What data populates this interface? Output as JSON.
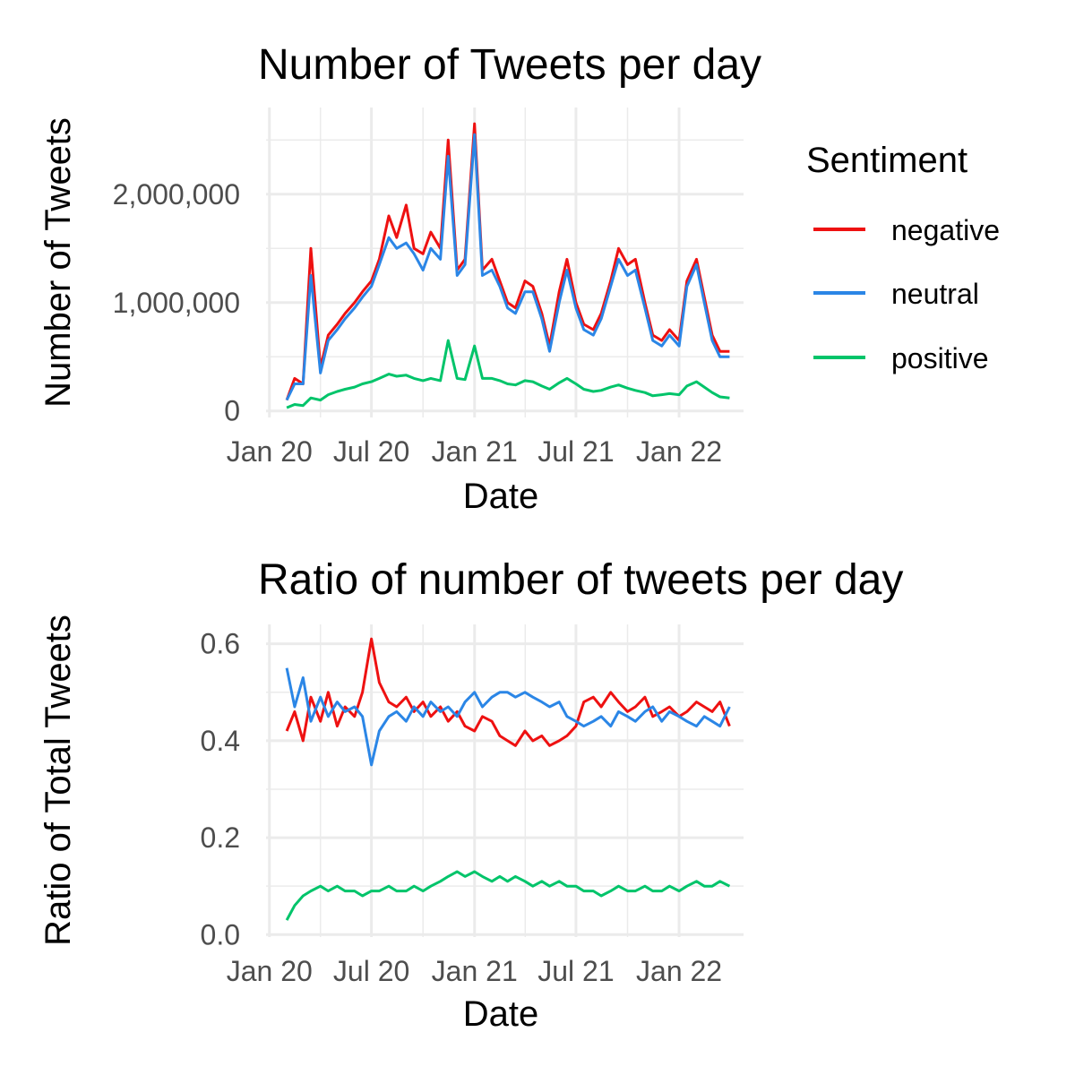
{
  "legend": {
    "title": "Sentiment",
    "items": [
      {
        "label": "negative",
        "color": "#ee1111"
      },
      {
        "label": "neutral",
        "color": "#2b86e6"
      },
      {
        "label": "positive",
        "color": "#00c46a"
      }
    ]
  },
  "chart_data": [
    {
      "type": "line",
      "title": "Number of Tweets per day",
      "xlabel": "Date",
      "ylabel": "Number of Tweets",
      "x_tick_labels": [
        "Jan 20",
        "Jul 20",
        "Jan 21",
        "Jul 21",
        "Jan 22"
      ],
      "y_ticks": [
        0,
        1000000,
        2000000
      ],
      "y_tick_labels": [
        "0",
        "1,000,000",
        "2,000,000"
      ],
      "ylim": [
        -60000,
        2800000
      ],
      "xlim": [
        "2019-12-26",
        "2022-04-26"
      ],
      "grid": true,
      "legend_position": "right",
      "x": [
        "2020-02-01",
        "2020-02-15",
        "2020-03-01",
        "2020-03-15",
        "2020-04-01",
        "2020-04-15",
        "2020-05-01",
        "2020-05-15",
        "2020-06-01",
        "2020-06-15",
        "2020-07-01",
        "2020-07-15",
        "2020-08-01",
        "2020-08-15",
        "2020-09-01",
        "2020-09-15",
        "2020-10-01",
        "2020-10-15",
        "2020-11-01",
        "2020-11-15",
        "2020-12-01",
        "2020-12-15",
        "2021-01-01",
        "2021-01-15",
        "2021-02-01",
        "2021-02-15",
        "2021-03-01",
        "2021-03-15",
        "2021-04-01",
        "2021-04-15",
        "2021-05-01",
        "2021-05-15",
        "2021-06-01",
        "2021-06-15",
        "2021-07-01",
        "2021-07-15",
        "2021-08-01",
        "2021-08-15",
        "2021-09-01",
        "2021-09-15",
        "2021-10-01",
        "2021-10-15",
        "2021-11-01",
        "2021-11-15",
        "2021-12-01",
        "2021-12-15",
        "2022-01-01",
        "2022-01-15",
        "2022-02-01",
        "2022-02-15",
        "2022-03-01",
        "2022-03-15",
        "2022-04-01"
      ],
      "series": [
        {
          "name": "negative",
          "values": [
            100000,
            300000,
            250000,
            1500000,
            400000,
            700000,
            800000,
            900000,
            1000000,
            1100000,
            1200000,
            1400000,
            1800000,
            1600000,
            1900000,
            1500000,
            1450000,
            1650000,
            1500000,
            2500000,
            1300000,
            1400000,
            2650000,
            1300000,
            1400000,
            1200000,
            1000000,
            950000,
            1200000,
            1150000,
            900000,
            600000,
            1100000,
            1400000,
            1000000,
            800000,
            750000,
            900000,
            1200000,
            1500000,
            1350000,
            1400000,
            1000000,
            700000,
            650000,
            750000,
            650000,
            1200000,
            1400000,
            1050000,
            700000,
            550000,
            550000
          ]
        },
        {
          "name": "neutral",
          "values": [
            100000,
            250000,
            250000,
            1250000,
            350000,
            650000,
            750000,
            850000,
            950000,
            1050000,
            1150000,
            1350000,
            1600000,
            1500000,
            1550000,
            1450000,
            1300000,
            1500000,
            1400000,
            2350000,
            1250000,
            1350000,
            2550000,
            1250000,
            1300000,
            1150000,
            950000,
            900000,
            1100000,
            1100000,
            850000,
            550000,
            1000000,
            1300000,
            950000,
            750000,
            700000,
            850000,
            1150000,
            1400000,
            1250000,
            1300000,
            950000,
            650000,
            600000,
            700000,
            600000,
            1150000,
            1350000,
            1000000,
            650000,
            500000,
            500000
          ]
        },
        {
          "name": "positive",
          "values": [
            30000,
            60000,
            50000,
            120000,
            100000,
            150000,
            180000,
            200000,
            220000,
            250000,
            270000,
            300000,
            340000,
            320000,
            330000,
            300000,
            280000,
            300000,
            280000,
            650000,
            300000,
            290000,
            600000,
            300000,
            300000,
            280000,
            250000,
            240000,
            280000,
            270000,
            230000,
            200000,
            260000,
            300000,
            250000,
            200000,
            180000,
            190000,
            220000,
            240000,
            210000,
            190000,
            170000,
            140000,
            150000,
            160000,
            150000,
            230000,
            270000,
            220000,
            170000,
            130000,
            120000
          ]
        }
      ]
    },
    {
      "type": "line",
      "title": "Ratio of number of tweets per day",
      "xlabel": "Date",
      "ylabel": "Ratio of Total Tweets",
      "x_tick_labels": [
        "Jan 20",
        "Jul 20",
        "Jan 21",
        "Jul 21",
        "Jan 22"
      ],
      "y_ticks": [
        0,
        0.2,
        0.4,
        0.6
      ],
      "y_tick_labels": [
        "0.0",
        "0.2",
        "0.4",
        "0.6"
      ],
      "ylim": [
        -0.005,
        0.64
      ],
      "xlim": [
        "2019-12-26",
        "2022-04-26"
      ],
      "grid": true,
      "x": [
        "2020-02-01",
        "2020-02-15",
        "2020-03-01",
        "2020-03-15",
        "2020-04-01",
        "2020-04-15",
        "2020-05-01",
        "2020-05-15",
        "2020-06-01",
        "2020-06-15",
        "2020-07-01",
        "2020-07-15",
        "2020-08-01",
        "2020-08-15",
        "2020-09-01",
        "2020-09-15",
        "2020-10-01",
        "2020-10-15",
        "2020-11-01",
        "2020-11-15",
        "2020-12-01",
        "2020-12-15",
        "2021-01-01",
        "2021-01-15",
        "2021-02-01",
        "2021-02-15",
        "2021-03-01",
        "2021-03-15",
        "2021-04-01",
        "2021-04-15",
        "2021-05-01",
        "2021-05-15",
        "2021-06-01",
        "2021-06-15",
        "2021-07-01",
        "2021-07-15",
        "2021-08-01",
        "2021-08-15",
        "2021-09-01",
        "2021-09-15",
        "2021-10-01",
        "2021-10-15",
        "2021-11-01",
        "2021-11-15",
        "2021-12-01",
        "2021-12-15",
        "2022-01-01",
        "2022-01-15",
        "2022-02-01",
        "2022-02-15",
        "2022-03-01",
        "2022-03-15",
        "2022-04-01"
      ],
      "series": [
        {
          "name": "negative",
          "values": [
            0.42,
            0.46,
            0.4,
            0.49,
            0.44,
            0.5,
            0.43,
            0.47,
            0.45,
            0.5,
            0.61,
            0.52,
            0.48,
            0.47,
            0.49,
            0.46,
            0.48,
            0.45,
            0.47,
            0.44,
            0.46,
            0.43,
            0.42,
            0.45,
            0.44,
            0.41,
            0.4,
            0.39,
            0.42,
            0.4,
            0.41,
            0.39,
            0.4,
            0.41,
            0.43,
            0.48,
            0.49,
            0.47,
            0.5,
            0.48,
            0.46,
            0.47,
            0.49,
            0.45,
            0.46,
            0.47,
            0.45,
            0.46,
            0.48,
            0.47,
            0.46,
            0.48,
            0.43
          ]
        },
        {
          "name": "neutral",
          "values": [
            0.55,
            0.47,
            0.53,
            0.44,
            0.49,
            0.45,
            0.48,
            0.46,
            0.47,
            0.45,
            0.35,
            0.42,
            0.45,
            0.46,
            0.44,
            0.47,
            0.45,
            0.48,
            0.46,
            0.47,
            0.45,
            0.48,
            0.5,
            0.47,
            0.49,
            0.5,
            0.5,
            0.49,
            0.5,
            0.49,
            0.48,
            0.47,
            0.48,
            0.45,
            0.44,
            0.43,
            0.44,
            0.45,
            0.43,
            0.46,
            0.45,
            0.44,
            0.46,
            0.47,
            0.44,
            0.46,
            0.45,
            0.44,
            0.43,
            0.45,
            0.44,
            0.43,
            0.47
          ]
        },
        {
          "name": "positive",
          "values": [
            0.03,
            0.06,
            0.08,
            0.09,
            0.1,
            0.09,
            0.1,
            0.09,
            0.09,
            0.08,
            0.09,
            0.09,
            0.1,
            0.09,
            0.09,
            0.1,
            0.09,
            0.1,
            0.11,
            0.12,
            0.13,
            0.12,
            0.13,
            0.12,
            0.11,
            0.12,
            0.11,
            0.12,
            0.11,
            0.1,
            0.11,
            0.1,
            0.11,
            0.1,
            0.1,
            0.09,
            0.09,
            0.08,
            0.09,
            0.1,
            0.09,
            0.09,
            0.1,
            0.09,
            0.09,
            0.1,
            0.09,
            0.1,
            0.11,
            0.1,
            0.1,
            0.11,
            0.1
          ]
        }
      ]
    }
  ]
}
